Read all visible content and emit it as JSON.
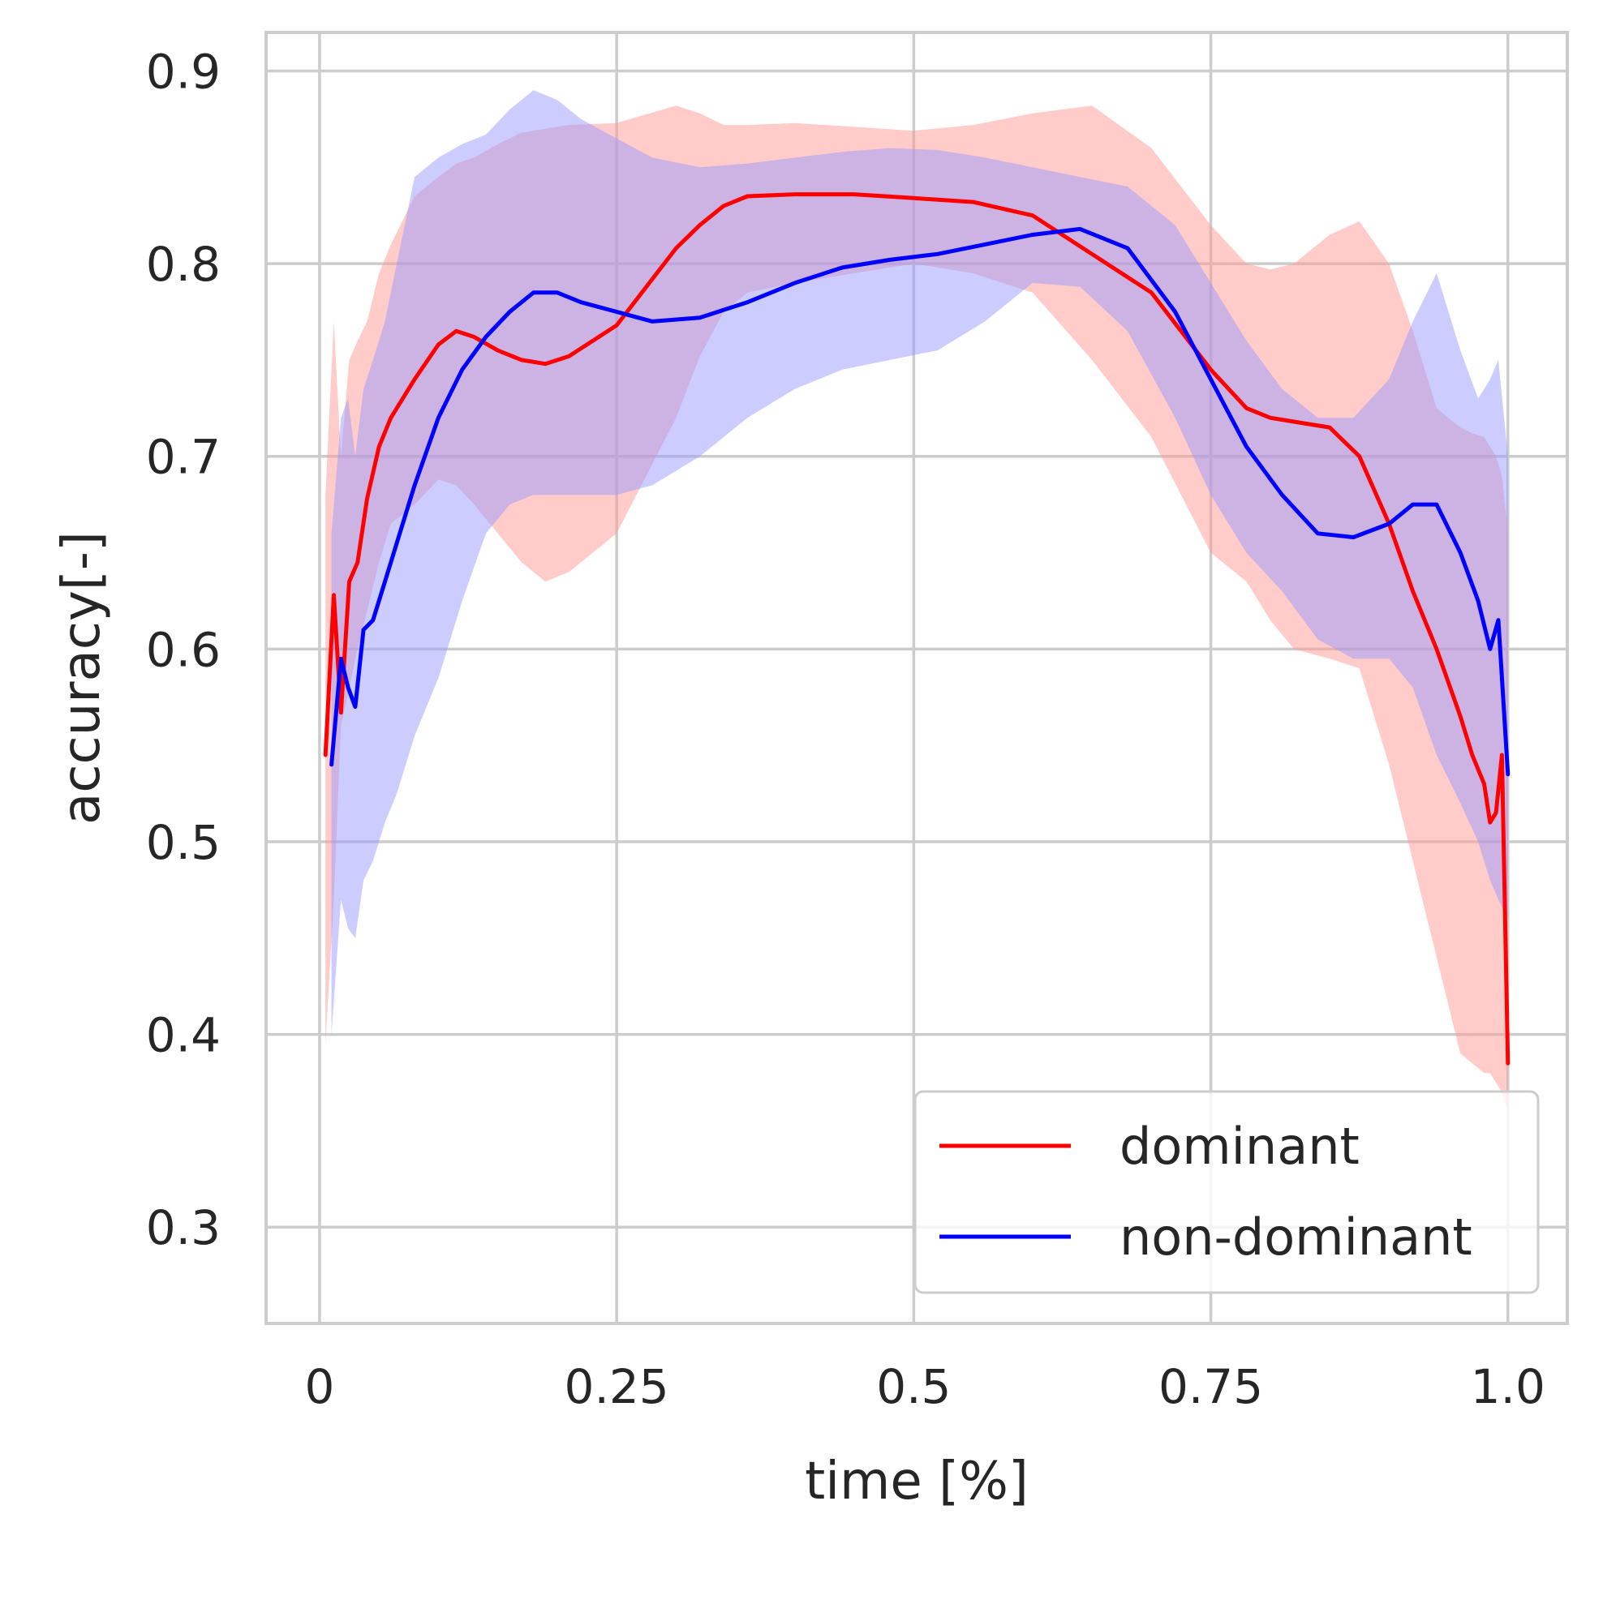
{
  "chart_data": {
    "type": "line",
    "title": "",
    "xlabel": "time [%]",
    "ylabel": "accuracy[-]",
    "xlim": [
      -0.045,
      1.05
    ],
    "ylim": [
      0.25,
      0.92
    ],
    "xticks": [
      0,
      0.25,
      0.5,
      0.75,
      1.0
    ],
    "xtick_labels": [
      "0",
      "0.25",
      "0.5",
      "0.75",
      "1.0"
    ],
    "yticks": [
      0.3,
      0.4,
      0.5,
      0.6,
      0.7,
      0.8,
      0.9
    ],
    "ytick_labels": [
      "0.3",
      "0.4",
      "0.5",
      "0.6",
      "0.7",
      "0.8",
      "0.9"
    ],
    "grid": true,
    "legend": {
      "position": "bottom-right"
    },
    "series": [
      {
        "name": "dominant",
        "color": "#ff0000",
        "band_color": "#ff9a93",
        "x": [
          0.005,
          0.012,
          0.018,
          0.025,
          0.032,
          0.04,
          0.05,
          0.06,
          0.08,
          0.1,
          0.115,
          0.13,
          0.15,
          0.17,
          0.19,
          0.21,
          0.25,
          0.3,
          0.32,
          0.34,
          0.36,
          0.4,
          0.45,
          0.5,
          0.55,
          0.6,
          0.65,
          0.7,
          0.75,
          0.78,
          0.8,
          0.82,
          0.85,
          0.875,
          0.9,
          0.92,
          0.94,
          0.96,
          0.97,
          0.98,
          0.985,
          0.99,
          0.995,
          1.0
        ],
        "y": [
          0.545,
          0.628,
          0.567,
          0.635,
          0.645,
          0.678,
          0.705,
          0.72,
          0.74,
          0.758,
          0.765,
          0.762,
          0.755,
          0.75,
          0.748,
          0.752,
          0.768,
          0.808,
          0.82,
          0.83,
          0.835,
          0.836,
          0.836,
          0.834,
          0.832,
          0.825,
          0.805,
          0.785,
          0.745,
          0.725,
          0.72,
          0.718,
          0.715,
          0.7,
          0.665,
          0.63,
          0.6,
          0.565,
          0.545,
          0.53,
          0.51,
          0.515,
          0.545,
          0.385
        ],
        "lower": [
          0.395,
          0.47,
          0.56,
          0.58,
          0.6,
          0.62,
          0.645,
          0.665,
          0.675,
          0.688,
          0.685,
          0.675,
          0.66,
          0.645,
          0.635,
          0.64,
          0.66,
          0.72,
          0.752,
          0.775,
          0.785,
          0.79,
          0.795,
          0.8,
          0.795,
          0.785,
          0.75,
          0.71,
          0.65,
          0.635,
          0.615,
          0.6,
          0.595,
          0.59,
          0.54,
          0.49,
          0.44,
          0.39,
          0.385,
          0.38,
          0.38,
          0.375,
          0.37,
          0.36
        ],
        "upper": [
          0.68,
          0.77,
          0.7,
          0.75,
          0.76,
          0.77,
          0.795,
          0.81,
          0.835,
          0.845,
          0.852,
          0.855,
          0.862,
          0.868,
          0.87,
          0.872,
          0.873,
          0.882,
          0.878,
          0.872,
          0.872,
          0.873,
          0.871,
          0.869,
          0.872,
          0.878,
          0.882,
          0.86,
          0.82,
          0.8,
          0.797,
          0.8,
          0.815,
          0.822,
          0.8,
          0.765,
          0.725,
          0.715,
          0.712,
          0.71,
          0.705,
          0.7,
          0.69,
          0.66
        ]
      },
      {
        "name": "non-dominant",
        "color": "#0000ff",
        "band_color": "#9a9aff",
        "x": [
          0.01,
          0.018,
          0.024,
          0.03,
          0.037,
          0.045,
          0.055,
          0.065,
          0.08,
          0.1,
          0.12,
          0.14,
          0.16,
          0.18,
          0.2,
          0.22,
          0.25,
          0.28,
          0.32,
          0.36,
          0.4,
          0.44,
          0.48,
          0.52,
          0.56,
          0.6,
          0.64,
          0.68,
          0.72,
          0.75,
          0.78,
          0.81,
          0.84,
          0.87,
          0.9,
          0.92,
          0.94,
          0.96,
          0.975,
          0.985,
          0.992,
          1.0
        ],
        "y": [
          0.54,
          0.595,
          0.58,
          0.57,
          0.61,
          0.615,
          0.635,
          0.655,
          0.685,
          0.72,
          0.745,
          0.762,
          0.775,
          0.785,
          0.785,
          0.78,
          0.775,
          0.77,
          0.772,
          0.78,
          0.79,
          0.798,
          0.802,
          0.805,
          0.81,
          0.815,
          0.818,
          0.808,
          0.775,
          0.74,
          0.705,
          0.68,
          0.66,
          0.658,
          0.665,
          0.675,
          0.675,
          0.65,
          0.625,
          0.6,
          0.615,
          0.535
        ],
        "lower": [
          0.4,
          0.47,
          0.455,
          0.45,
          0.48,
          0.49,
          0.51,
          0.525,
          0.555,
          0.585,
          0.625,
          0.66,
          0.675,
          0.68,
          0.68,
          0.68,
          0.68,
          0.685,
          0.7,
          0.72,
          0.735,
          0.745,
          0.75,
          0.755,
          0.77,
          0.79,
          0.788,
          0.765,
          0.72,
          0.68,
          0.65,
          0.63,
          0.605,
          0.595,
          0.595,
          0.58,
          0.545,
          0.52,
          0.5,
          0.48,
          0.47,
          0.46
        ],
        "upper": [
          0.66,
          0.72,
          0.73,
          0.7,
          0.735,
          0.75,
          0.77,
          0.8,
          0.845,
          0.855,
          0.862,
          0.867,
          0.88,
          0.89,
          0.885,
          0.875,
          0.865,
          0.855,
          0.85,
          0.852,
          0.855,
          0.858,
          0.86,
          0.859,
          0.855,
          0.85,
          0.845,
          0.84,
          0.82,
          0.79,
          0.76,
          0.735,
          0.72,
          0.72,
          0.74,
          0.77,
          0.795,
          0.755,
          0.73,
          0.74,
          0.75,
          0.7
        ]
      }
    ]
  }
}
